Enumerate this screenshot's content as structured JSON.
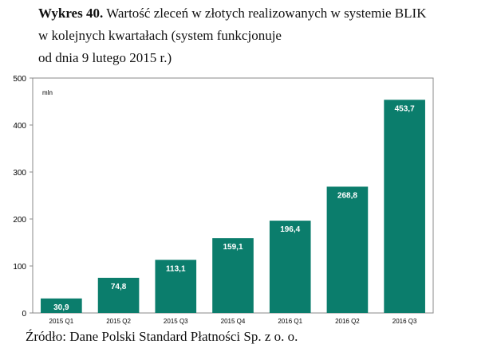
{
  "chart_data": {
    "type": "bar",
    "title_prefix": "Wykres 40.",
    "title_lines": [
      "Wartość zleceń w złotych realizowanych w systemie BLIK",
      "w kolejnych kwartałach (system funkcjonuje",
      "od dnia 9 lutego 2015 r.)"
    ],
    "unit_label": "mln",
    "categories": [
      "2015 Q1",
      "2015 Q2",
      "2015 Q3",
      "2015 Q4",
      "2016 Q1",
      "2016 Q2",
      "2016 Q3"
    ],
    "values": [
      30.9,
      74.8,
      113.1,
      159.1,
      196.4,
      268.8,
      453.7
    ],
    "value_labels": [
      "30,9",
      "74,8",
      "113,1",
      "159,1",
      "196,4",
      "268,8",
      "453,7"
    ],
    "color": "#0b7d6c",
    "ylim": [
      0,
      500
    ],
    "yticks": [
      0,
      100,
      200,
      300,
      400,
      500
    ],
    "source": "Źródło: Dane Polski Standard Płatności Sp. z o. o."
  }
}
